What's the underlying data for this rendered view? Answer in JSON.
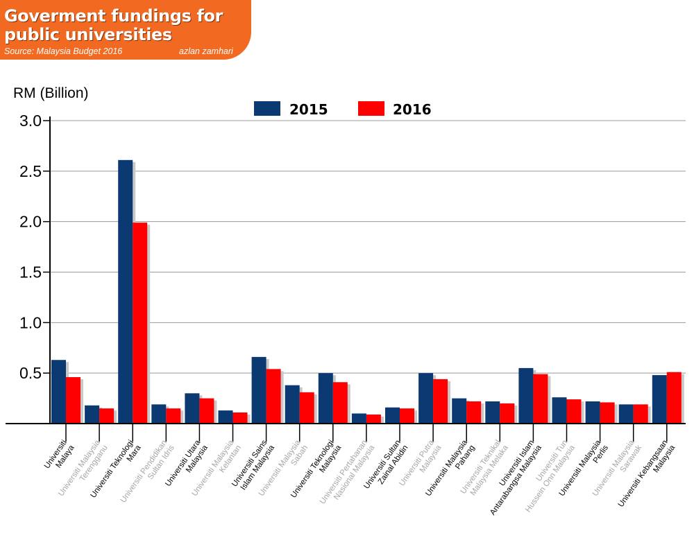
{
  "header": {
    "title_line1": "Goverment fundings for",
    "title_line2": "public universities",
    "source": "Source: Malaysia Budget 2016",
    "author": "azlan zamhari"
  },
  "colors": {
    "banner": "#f26a22",
    "series_2015": "#0b3a72",
    "series_2016": "#ff0000",
    "shadow": "#c8c8c8",
    "grid": "#999999",
    "label_dark": "#000000",
    "label_light": "#a6a6a6"
  },
  "chart_data": {
    "type": "bar",
    "ylabel": "RM (Billion)",
    "ylim": [
      0,
      3.0
    ],
    "yticks": [
      "0.5",
      "1.0",
      "1.5",
      "2.0",
      "2.5",
      "3.0"
    ],
    "grid": true,
    "legend": "top-center",
    "categories": [
      [
        "Universiti",
        "Malaya"
      ],
      [
        "Universiti Malaysia",
        "Terengganu"
      ],
      [
        "Universiti Teknologi",
        "Mara"
      ],
      [
        "Universiti Pendidikan",
        "Sultan Idris"
      ],
      [
        "Universiti Utara",
        "Malaysia"
      ],
      [
        "Universiti Malaysia",
        "Kelantan"
      ],
      [
        "Universiti Sains",
        "Islam Malaysia"
      ],
      [
        "Universiti Malaysia",
        "Sabah"
      ],
      [
        "Universiti Teknologi",
        "Malaysia"
      ],
      [
        "Universiti Pertahanan",
        "Nasional Malaysia"
      ],
      [
        "Universiti Sultan",
        "Zainal Abidin"
      ],
      [
        "Universiti Putra",
        "Malaysia"
      ],
      [
        "Universiti Malaysia",
        "Pahang"
      ],
      [
        "Universiti Teknikal",
        "Malaysia Melaka"
      ],
      [
        "Universiti Islam",
        "Antarabangsa Malaysia"
      ],
      [
        "Universiti Tun",
        "Hussein Onn Malaysia"
      ],
      [
        "Universiti Malaysia",
        "Perlis"
      ],
      [
        "Universiti Malaysia",
        "Sarawak"
      ],
      [
        "Universiti Kebangsaan",
        "Malaysia"
      ]
    ],
    "series": [
      {
        "name": "2015",
        "values": [
          0.63,
          0.18,
          2.61,
          0.19,
          0.3,
          0.13,
          0.66,
          0.38,
          0.5,
          0.1,
          0.16,
          0.5,
          0.25,
          0.22,
          0.55,
          0.26,
          0.22,
          0.19,
          0.48
        ]
      },
      {
        "name": "2016",
        "values": [
          0.46,
          0.15,
          1.99,
          0.15,
          0.25,
          0.11,
          0.54,
          0.31,
          0.41,
          0.09,
          0.15,
          0.44,
          0.22,
          0.2,
          0.49,
          0.24,
          0.21,
          0.19,
          0.51
        ]
      }
    ]
  }
}
